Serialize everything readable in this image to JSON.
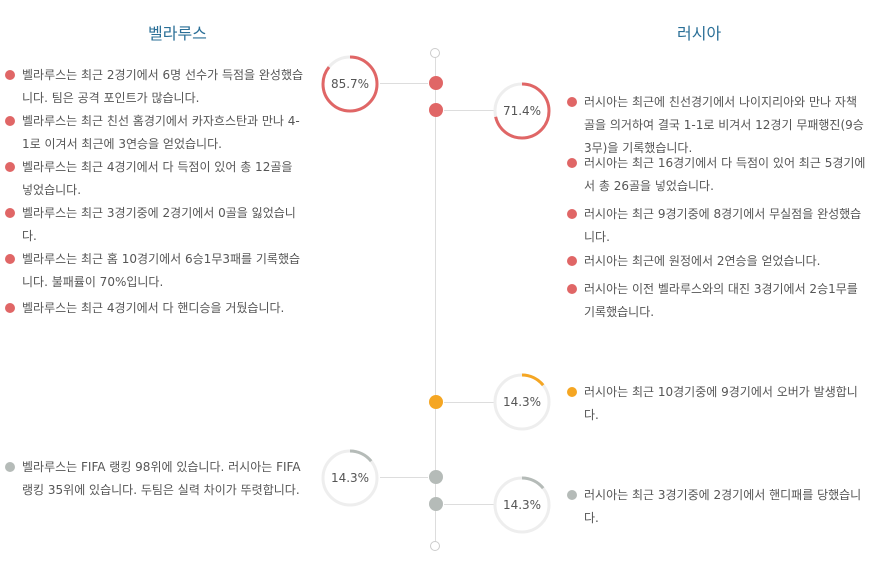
{
  "colors": {
    "red": "#e06666",
    "orange": "#f5a623",
    "gray": "#b5bbb8",
    "track": "#eeeeee"
  },
  "teams": {
    "left": "벨라루스",
    "right": "러시아"
  },
  "stats": {
    "left_red": {
      "label": "85.7%",
      "value": 0.857
    },
    "right_red": {
      "label": "71.4%",
      "value": 0.714
    },
    "right_orange": {
      "label": "14.3%",
      "value": 0.143
    },
    "left_gray": {
      "label": "14.3%",
      "value": 0.143
    },
    "right_gray": {
      "label": "14.3%",
      "value": 0.143
    }
  },
  "left_items": [
    "벨라루스는 최근 2경기에서 6명 선수가 득점을 완성했습니다. 팀은 공격 포인트가 많습니다.",
    "벨라루스는 최근 친선 홈경기에서 카자흐스탄과 만나 4-1로 이겨서 최근에 3연승을 얻었습니다.",
    "벨라루스는 최근 4경기에서 다 득점이 있어 총 12골을 넣었습니다.",
    "벨라루스는 최근 3경기중에 2경기에서 0골을 잃었습니다.",
    "벨라루스는 최근 홈 10경기에서 6승1무3패를 기록했습니다. 불패률이 70%입니다.",
    "벨라루스는 최근 4경기에서 다 핸디승을 거뒀습니다.",
    "벨라루스는 FIFA 랭킹 98위에 있습니다. 러시아는 FIFA 랭킹 35위에 있습니다. 두팀은 실력 차이가 뚜렷합니다."
  ],
  "right_items": [
    "러시아는 최근에 친선경기에서 나이지리아와 만나 자책골을 의거하여 결국 1-1로 비겨서 12경기 무패행진(9승3무)을 기록했습니다.",
    "러시아는 최근 16경기에서 다 득점이 있어 최근 5경기에서 총 26골을 넣었습니다.",
    "러시아는 최근 9경기중에 8경기에서 무실점을 완성했습니다.",
    "러시아는 최근에 원정에서 2연승을 얻었습니다.",
    "러시아는 이전 벨라루스와의 대진 3경기에서 2승1무를 기록했습니다.",
    "러시아는 최근 10경기중에 9경기에서 오버가 발생합니다.",
    "러시아는 최근 3경기중에 2경기에서 핸디패를 당했습니다."
  ]
}
